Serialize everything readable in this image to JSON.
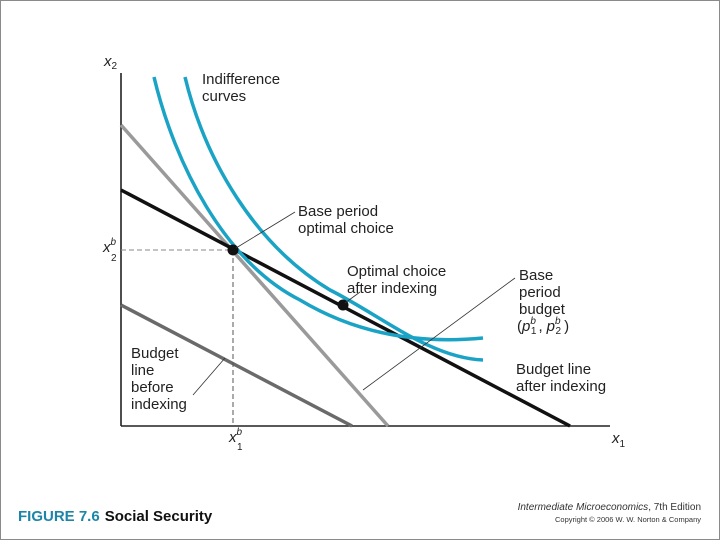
{
  "diagram": {
    "x_axis_label": "x",
    "x_axis_subscript": "1",
    "y_axis_label": "x",
    "y_axis_subscript": "2",
    "x_tick_base": "x",
    "x_tick_sub": "1",
    "x_tick_sup": "b",
    "y_tick_base": "x",
    "y_tick_sub": "2",
    "y_tick_sup": "b",
    "indifference_label": [
      "Indifference",
      "curves"
    ],
    "base_choice_label": [
      "Base period",
      "optimal choice"
    ],
    "optimal_after_label": [
      "Optimal choice",
      "after indexing"
    ],
    "base_budget_label": [
      "Base",
      "period",
      "budget"
    ],
    "base_budget_prices": {
      "open": "(",
      "p1": "p",
      "p1_sub": "1",
      "p1_sup": "b",
      "sep": ",",
      "p2": "p",
      "p2_sub": "2",
      "p2_sup": "b",
      "close": ")"
    },
    "budget_before_label": [
      "Budget",
      "line",
      "before",
      "indexing"
    ],
    "budget_after_label": [
      "Budget line",
      "after indexing"
    ],
    "colors": {
      "curve": "#1ba3c6",
      "base_budget": "#9a9a9a",
      "before_budget": "#6a6a6a",
      "after_budget": "#111111",
      "axis": "#222222"
    }
  },
  "caption": {
    "figure_number": "FIGURE 7.6",
    "figure_title": "Social Security"
  },
  "credits": {
    "book_title": "Intermediate Microeconomics",
    "edition": ", 7th Edition",
    "copyright": "Copyright © 2006 W. W. Norton & Company"
  }
}
